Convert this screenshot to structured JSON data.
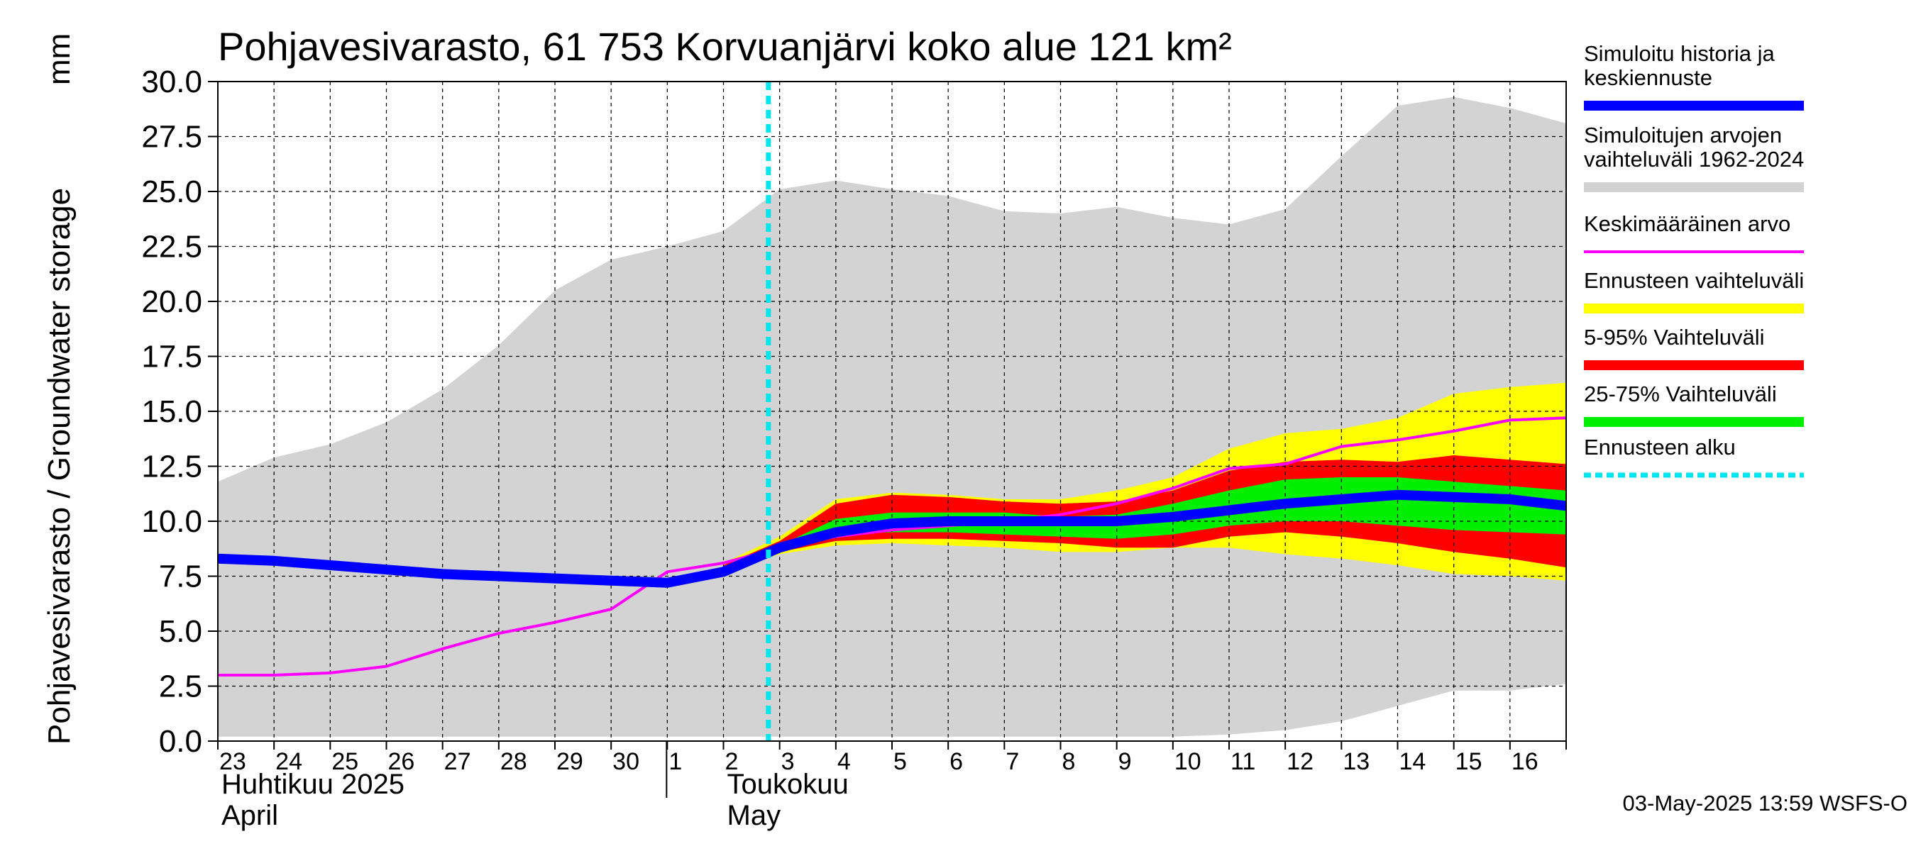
{
  "chart_data": {
    "type": "area",
    "title": "Pohjavesivarasto, 61 753 Korvuanjärvi koko alue 121 km²",
    "ylabel": "Pohjavesivarasto / Groundwater storage",
    "yunit": "mm",
    "ylim": [
      0.0,
      30.0
    ],
    "yticks": [
      "0.0",
      "2.5",
      "5.0",
      "7.5",
      "10.0",
      "12.5",
      "15.0",
      "17.5",
      "20.0",
      "22.5",
      "25.0",
      "27.5",
      "30.0"
    ],
    "x_tick_labels": [
      "23",
      "24",
      "25",
      "26",
      "27",
      "28",
      "29",
      "30",
      "1",
      "2",
      "3",
      "4",
      "5",
      "6",
      "7",
      "8",
      "9",
      "10",
      "11",
      "12",
      "13",
      "14",
      "15",
      "16"
    ],
    "x_days": [
      0,
      1,
      2,
      3,
      4,
      5,
      6,
      7,
      8,
      9,
      10,
      11,
      12,
      13,
      14,
      15,
      16,
      17,
      18,
      19,
      20,
      21,
      22,
      23,
      24
    ],
    "month_labels": [
      {
        "day": 0,
        "line1": "Huhtikuu  2025",
        "line2": "April"
      },
      {
        "day": 9,
        "line1": "Toukokuu",
        "line2": "May"
      }
    ],
    "grid": true,
    "forecast_start_day": 9.8,
    "series": [
      {
        "name": "Simuloitujen arvojen vaihteluväli 1962-2024",
        "kind": "band",
        "color": "#d3d3d3",
        "upper": [
          11.8,
          12.9,
          13.5,
          14.5,
          16.0,
          18.0,
          20.5,
          21.9,
          22.5,
          23.2,
          25.1,
          25.5,
          25.1,
          24.8,
          24.1,
          24.0,
          24.3,
          23.8,
          23.5,
          24.2,
          26.6,
          28.9,
          29.3,
          28.8,
          28.1
        ],
        "lower": [
          0.2,
          0.2,
          0.2,
          0.2,
          0.2,
          0.2,
          0.2,
          0.2,
          0.2,
          0.2,
          0.2,
          0.2,
          0.2,
          0.2,
          0.2,
          0.2,
          0.2,
          0.2,
          0.3,
          0.5,
          0.9,
          1.6,
          2.3,
          2.3,
          2.6
        ]
      },
      {
        "name": "Ennusteen vaihteluväli",
        "kind": "band",
        "color": "#ffff00",
        "start": 9,
        "upper": [
          8.1,
          9.3,
          11.0,
          11.3,
          11.2,
          11.0,
          11.0,
          11.4,
          12.0,
          13.3,
          14.0,
          14.2,
          14.7,
          15.8,
          16.1,
          16.3
        ],
        "lower": [
          7.7,
          8.5,
          8.9,
          9.0,
          8.9,
          8.8,
          8.6,
          8.6,
          8.8,
          8.8,
          8.5,
          8.3,
          8.0,
          7.6,
          7.5,
          7.3
        ]
      },
      {
        "name": "5-95% Vaihteluväli",
        "kind": "band",
        "color": "#ff0000",
        "start": 9,
        "upper": [
          8.0,
          9.1,
          10.8,
          11.2,
          11.1,
          10.9,
          10.8,
          10.9,
          11.4,
          12.3,
          12.7,
          12.8,
          12.7,
          13.0,
          12.8,
          12.6
        ],
        "lower": [
          7.7,
          8.6,
          9.1,
          9.2,
          9.2,
          9.1,
          9.0,
          8.8,
          8.8,
          9.3,
          9.5,
          9.3,
          9.0,
          8.6,
          8.3,
          7.9
        ]
      },
      {
        "name": "25-75% Vaihteluväli",
        "kind": "band",
        "color": "#00ee00",
        "start": 9,
        "upper": [
          7.9,
          8.9,
          10.1,
          10.4,
          10.4,
          10.4,
          10.2,
          10.3,
          10.8,
          11.4,
          11.9,
          12.0,
          12.0,
          11.8,
          11.6,
          11.4
        ],
        "lower": [
          7.8,
          8.8,
          9.4,
          9.5,
          9.5,
          9.4,
          9.3,
          9.2,
          9.4,
          9.8,
          10.0,
          10.0,
          9.8,
          9.6,
          9.5,
          9.4
        ]
      },
      {
        "name": "Keskimääräinen arvo",
        "kind": "line",
        "color": "#ff00ff",
        "values": [
          3.0,
          3.0,
          3.1,
          3.4,
          4.2,
          4.9,
          5.4,
          6.0,
          7.7,
          8.1,
          8.8,
          9.3,
          9.6,
          9.8,
          10.0,
          10.3,
          10.8,
          11.5,
          12.4,
          12.6,
          13.4,
          13.7,
          14.1,
          14.6,
          14.7
        ]
      },
      {
        "name": "Simuloitu historia ja keskiennuste",
        "kind": "line",
        "color": "#0000ff",
        "values": [
          8.3,
          8.2,
          8.0,
          7.8,
          7.6,
          7.5,
          7.4,
          7.3,
          7.2,
          7.7,
          8.8,
          9.5,
          9.9,
          10.0,
          10.0,
          10.0,
          10.0,
          10.2,
          10.5,
          10.8,
          11.0,
          11.2,
          11.1,
          11.0,
          10.7
        ]
      },
      {
        "name": "Ennusteen alku",
        "kind": "vline",
        "color": "#00e5ee",
        "day": 9.8
      }
    ],
    "legend": {
      "placement": "right",
      "entries": [
        {
          "label": "Simuloitu historia ja\nkeskiennuste",
          "color": "#0000ff",
          "style": "thick"
        },
        {
          "label": "Simuloitujen arvojen\nvaihteluväli 1962-2024",
          "color": "#d3d3d3",
          "style": "thick"
        },
        {
          "label": "Keskimääräinen arvo",
          "color": "#ff00ff",
          "style": "thin"
        },
        {
          "label": "Ennusteen vaihteluväli",
          "color": "#ffff00",
          "style": "thick"
        },
        {
          "label": "5-95% Vaihteluväli",
          "color": "#ff0000",
          "style": "thick"
        },
        {
          "label": "25-75% Vaihteluväli",
          "color": "#00ee00",
          "style": "thick"
        },
        {
          "label": "Ennusteen alku",
          "color": "#00e5ee",
          "style": "dotted"
        }
      ]
    },
    "footer": "03-May-2025 13:59 WSFS-O"
  }
}
